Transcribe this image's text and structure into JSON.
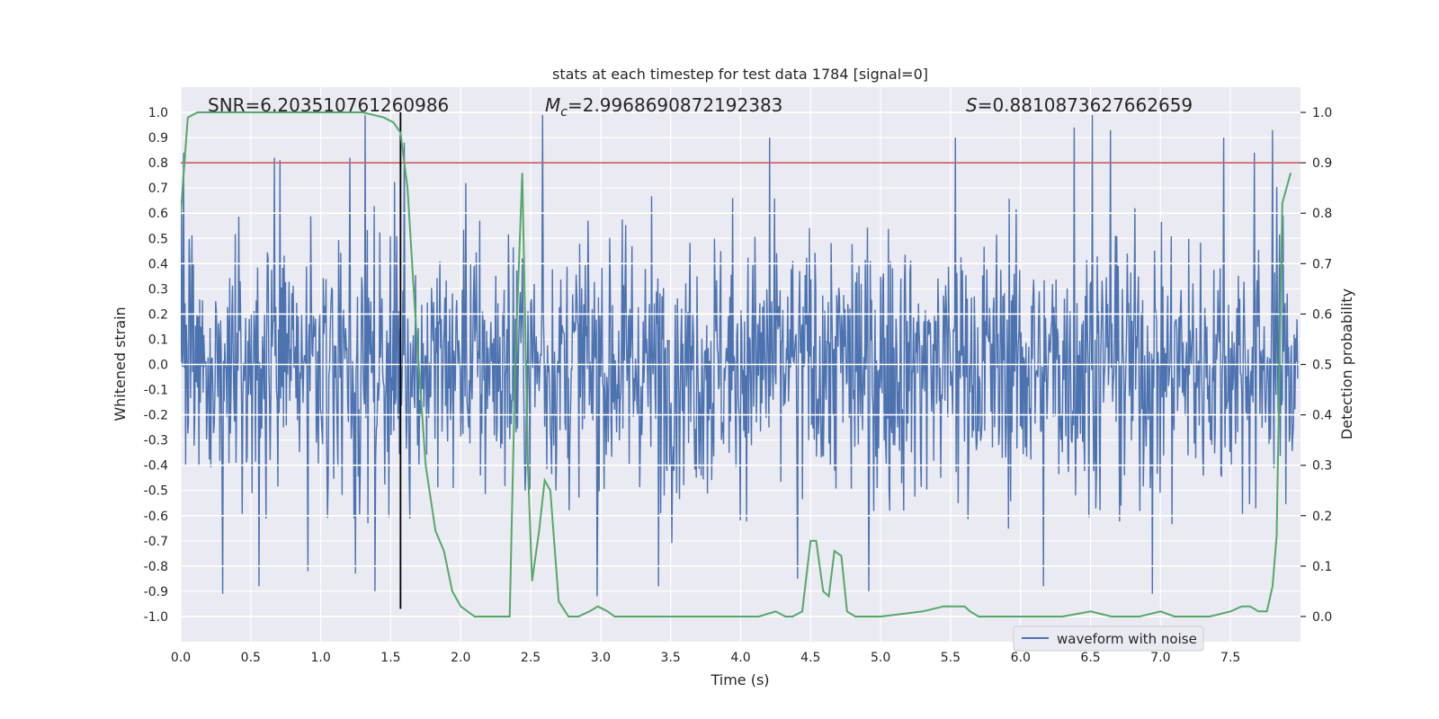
{
  "chart_data": {
    "type": "line",
    "title": "stats at each timestep for test data 1784 [signal=0]",
    "xlabel": "Time (s)",
    "ylabel": "Whitened strain",
    "y2label": "Detection probability",
    "xlim": [
      0.0,
      8.0
    ],
    "ylim": [
      -1.1,
      1.1
    ],
    "y2lim": [
      -0.05,
      1.05
    ],
    "xticks": [
      "0.0",
      "0.5",
      "1.0",
      "1.5",
      "2.0",
      "2.5",
      "3.0",
      "3.5",
      "4.0",
      "4.5",
      "5.0",
      "5.5",
      "6.0",
      "6.5",
      "7.0",
      "7.5"
    ],
    "yticks": [
      "1.0",
      "0.9",
      "0.8",
      "0.7",
      "0.6",
      "0.5",
      "0.4",
      "0.3",
      "0.2",
      "0.1",
      "0.0",
      "-0.1",
      "-0.2",
      "-0.3",
      "-0.4",
      "-0.5",
      "-0.6",
      "-0.7",
      "-0.8",
      "-0.9",
      "-1.0"
    ],
    "y2ticks": [
      "1.0",
      "0.9",
      "0.8",
      "0.7",
      "0.6",
      "0.5",
      "0.4",
      "0.3",
      "0.2",
      "0.1",
      "0.0"
    ],
    "annotations": {
      "snr": "SNR=6.203510761260986",
      "mc_symbol": "M",
      "mc_sub": "c",
      "mc_value": "=2.9968690872192383",
      "s_symbol": "S",
      "s_value": "=0.8810873627662659"
    },
    "threshold": {
      "y2_value": 0.9,
      "color": "#c44e52"
    },
    "marker_line": {
      "x": 1.57,
      "y_range": [
        -0.97,
        1.0
      ],
      "color": "#000000"
    },
    "legend": {
      "label": "waveform with noise",
      "position": "lower-right"
    },
    "series": [
      {
        "name": "waveform with noise",
        "axis": "left",
        "color": "#4c72b0",
        "style": "dense-noise",
        "sample_count": 1600,
        "peak_envelope": [
          0.42,
          0.98,
          1.0,
          -0.93
        ],
        "spikes": [
          [
            0.02,
            0.84
          ],
          [
            0.3,
            -0.91
          ],
          [
            0.56,
            -0.88
          ],
          [
            0.67,
            0.82
          ],
          [
            0.71,
            0.81
          ],
          [
            0.91,
            -0.82
          ],
          [
            1.21,
            0.82
          ],
          [
            1.25,
            -0.83
          ],
          [
            1.32,
            0.99
          ],
          [
            1.39,
            -0.9
          ],
          [
            1.6,
            0.88
          ],
          [
            2.04,
            0.72
          ],
          [
            2.59,
            0.99
          ],
          [
            2.98,
            -0.92
          ],
          [
            3.42,
            -0.88
          ],
          [
            4.22,
            0.9
          ],
          [
            4.42,
            -0.85
          ],
          [
            4.93,
            -0.9
          ],
          [
            5.55,
            0.9
          ],
          [
            6.18,
            -0.88
          ],
          [
            6.4,
            0.94
          ],
          [
            6.53,
            0.99
          ],
          [
            6.66,
            0.93
          ],
          [
            6.96,
            -0.91
          ],
          [
            7.47,
            0.9
          ],
          [
            7.69,
            0.84
          ],
          [
            7.82,
            0.93
          ]
        ]
      },
      {
        "name": "detection probability",
        "axis": "right",
        "color": "#55a868",
        "x": [
          0.0,
          0.05,
          0.12,
          0.3,
          0.6,
          1.0,
          1.3,
          1.45,
          1.52,
          1.57,
          1.62,
          1.68,
          1.75,
          1.82,
          1.88,
          1.94,
          2.0,
          2.1,
          2.2,
          2.26,
          2.3,
          2.35,
          2.39,
          2.44,
          2.48,
          2.51,
          2.56,
          2.6,
          2.64,
          2.7,
          2.77,
          2.84,
          2.92,
          2.98,
          3.05,
          3.1,
          3.3,
          3.6,
          3.85,
          4.0,
          4.13,
          4.25,
          4.32,
          4.37,
          4.44,
          4.5,
          4.54,
          4.59,
          4.63,
          4.67,
          4.72,
          4.76,
          4.82,
          4.88,
          5.0,
          5.3,
          5.45,
          5.5,
          5.55,
          5.6,
          5.64,
          5.7,
          5.8,
          6.0,
          6.3,
          6.5,
          6.65,
          6.85,
          7.0,
          7.1,
          7.2,
          7.35,
          7.5,
          7.58,
          7.64,
          7.7,
          7.76,
          7.8,
          7.83,
          7.87,
          7.93
        ],
        "values": [
          0.8,
          0.99,
          1.0,
          1.0,
          1.0,
          1.0,
          1.0,
          0.99,
          0.98,
          0.96,
          0.85,
          0.58,
          0.3,
          0.17,
          0.13,
          0.05,
          0.02,
          0.0,
          0.0,
          0.0,
          0.0,
          0.0,
          0.5,
          0.88,
          0.3,
          0.07,
          0.17,
          0.27,
          0.25,
          0.03,
          0.0,
          0.0,
          0.01,
          0.02,
          0.01,
          0.0,
          0.0,
          0.0,
          0.0,
          0.0,
          0.0,
          0.01,
          0.0,
          0.0,
          0.01,
          0.15,
          0.15,
          0.05,
          0.04,
          0.13,
          0.12,
          0.01,
          0.0,
          0.0,
          0.0,
          0.01,
          0.02,
          0.02,
          0.02,
          0.02,
          0.01,
          0.0,
          0.0,
          0.0,
          0.0,
          0.01,
          0.0,
          0.0,
          0.01,
          0.0,
          0.0,
          0.0,
          0.01,
          0.02,
          0.02,
          0.01,
          0.01,
          0.06,
          0.16,
          0.82,
          0.88
        ]
      }
    ]
  }
}
